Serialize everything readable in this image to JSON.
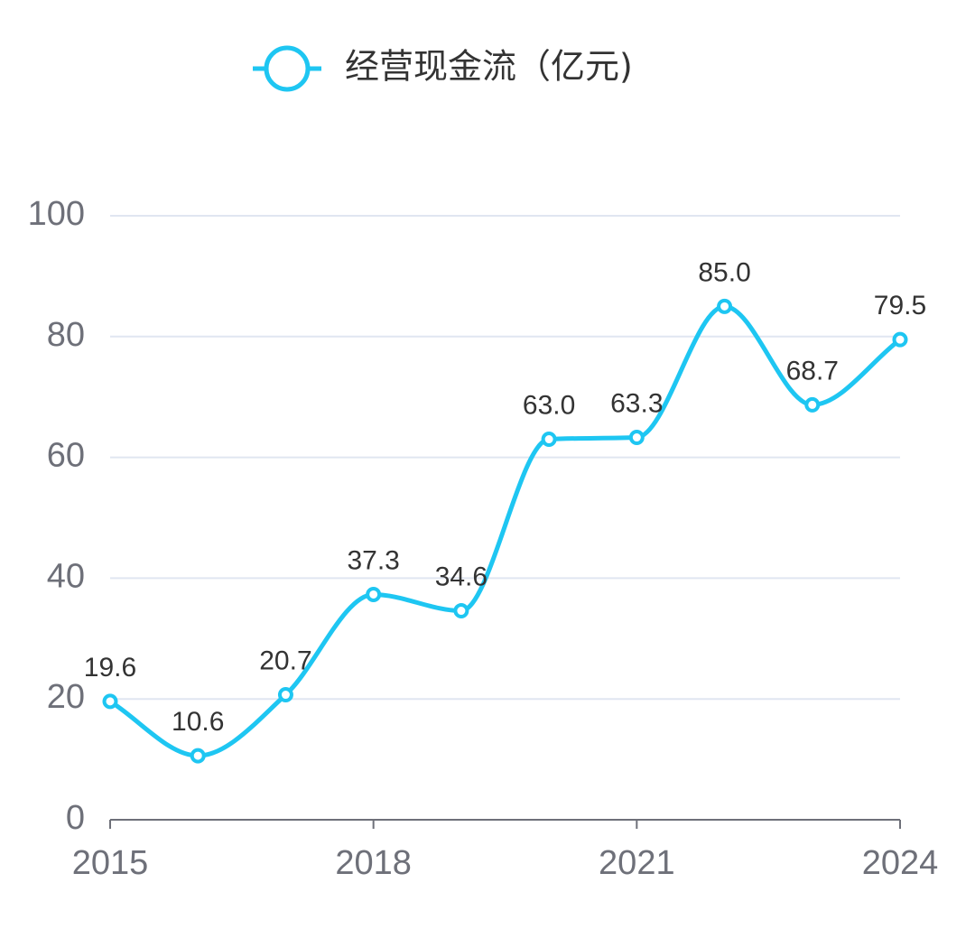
{
  "chart_data": {
    "type": "line",
    "smooth": true,
    "x": [
      "2015",
      "2016",
      "2017",
      "2018",
      "2019",
      "2020",
      "2021",
      "2022",
      "2023",
      "2024"
    ],
    "x_tick_labels": [
      "2015",
      "2018",
      "2021",
      "2024"
    ],
    "y_ticks": [
      0,
      20,
      40,
      60,
      80,
      100
    ],
    "ylim": [
      0,
      100
    ],
    "grid": true,
    "legend_position": "top-center",
    "series": [
      {
        "name": "经营现金流（亿元)",
        "color": "#1ec6f2",
        "values": [
          19.6,
          10.6,
          20.7,
          37.3,
          34.6,
          63.0,
          63.3,
          85.0,
          68.7,
          79.5
        ],
        "data_labels": [
          "19.6",
          "10.6",
          "20.7",
          "37.3",
          "34.6",
          "63.0",
          "63.3",
          "85.0",
          "68.7",
          "79.5"
        ]
      }
    ],
    "title": "",
    "xlabel": "",
    "ylabel": ""
  }
}
